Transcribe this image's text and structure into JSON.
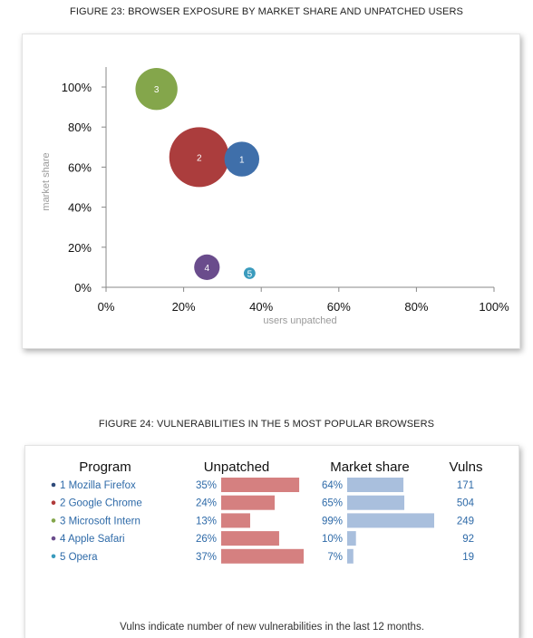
{
  "figure23": {
    "title": "FIGURE 23: BROWSER EXPOSURE BY MARKET SHARE AND UNPATCHED USERS"
  },
  "figure24": {
    "title": "FIGURE 24: VULNERABILITIES IN THE 5 MOST POPULAR BROWSERS",
    "note": "Vulns indicate number of new vulnerabilities in the last 12 months."
  },
  "chart_data": [
    {
      "type": "scatter",
      "variant": "bubble",
      "title": "",
      "xlabel": "users unpatched",
      "ylabel": "market share",
      "xlim": [
        0,
        100
      ],
      "ylim": [
        0,
        100
      ],
      "xticks": [
        "0%",
        "20%",
        "40%",
        "60%",
        "80%",
        "100%"
      ],
      "yticks": [
        "0%",
        "20%",
        "40%",
        "60%",
        "80%",
        "100%"
      ],
      "grid": false,
      "series": [
        {
          "label": "1",
          "x": 35,
          "y": 64,
          "size": 171,
          "color": "#3f6faa"
        },
        {
          "label": "2",
          "x": 24,
          "y": 65,
          "size": 504,
          "color": "#ab3d3d"
        },
        {
          "label": "3",
          "x": 13,
          "y": 99,
          "size": 249,
          "color": "#84a64b"
        },
        {
          "label": "4",
          "x": 26,
          "y": 10,
          "size": 92,
          "color": "#6a4c8c"
        },
        {
          "label": "5",
          "x": 37,
          "y": 7,
          "size": 19,
          "color": "#3a9bbd"
        }
      ]
    },
    {
      "type": "table",
      "columns": [
        "Program",
        "Unpatched",
        "Market share",
        "Vulns"
      ],
      "rows": [
        {
          "index": "1",
          "program": "Mozilla Firefox",
          "unpatched": 35,
          "unpatched_label": "35%",
          "market_share": 64,
          "market_share_label": "64%",
          "vulns": "171",
          "dot_color": "#2e4a7a"
        },
        {
          "index": "2",
          "program": "Google Chrome",
          "unpatched": 24,
          "unpatched_label": "24%",
          "market_share": 65,
          "market_share_label": "65%",
          "vulns": "504",
          "dot_color": "#b03a3a"
        },
        {
          "index": "3",
          "program": "Microsoft Intern",
          "unpatched": 13,
          "unpatched_label": "13%",
          "market_share": 99,
          "market_share_label": "99%",
          "vulns": "249",
          "dot_color": "#84a64b"
        },
        {
          "index": "4",
          "program": "Apple Safari",
          "unpatched": 26,
          "unpatched_label": "26%",
          "market_share": 10,
          "market_share_label": "10%",
          "vulns": "92",
          "dot_color": "#6a4c8c"
        },
        {
          "index": "5",
          "program": "Opera",
          "unpatched": 37,
          "unpatched_label": "37%",
          "market_share": 7,
          "market_share_label": "7%",
          "vulns": "19",
          "dot_color": "#3a9bbd"
        }
      ],
      "unpatched_bar_color": "#d58080",
      "market_share_bar_color": "#a9bfdd"
    }
  ]
}
